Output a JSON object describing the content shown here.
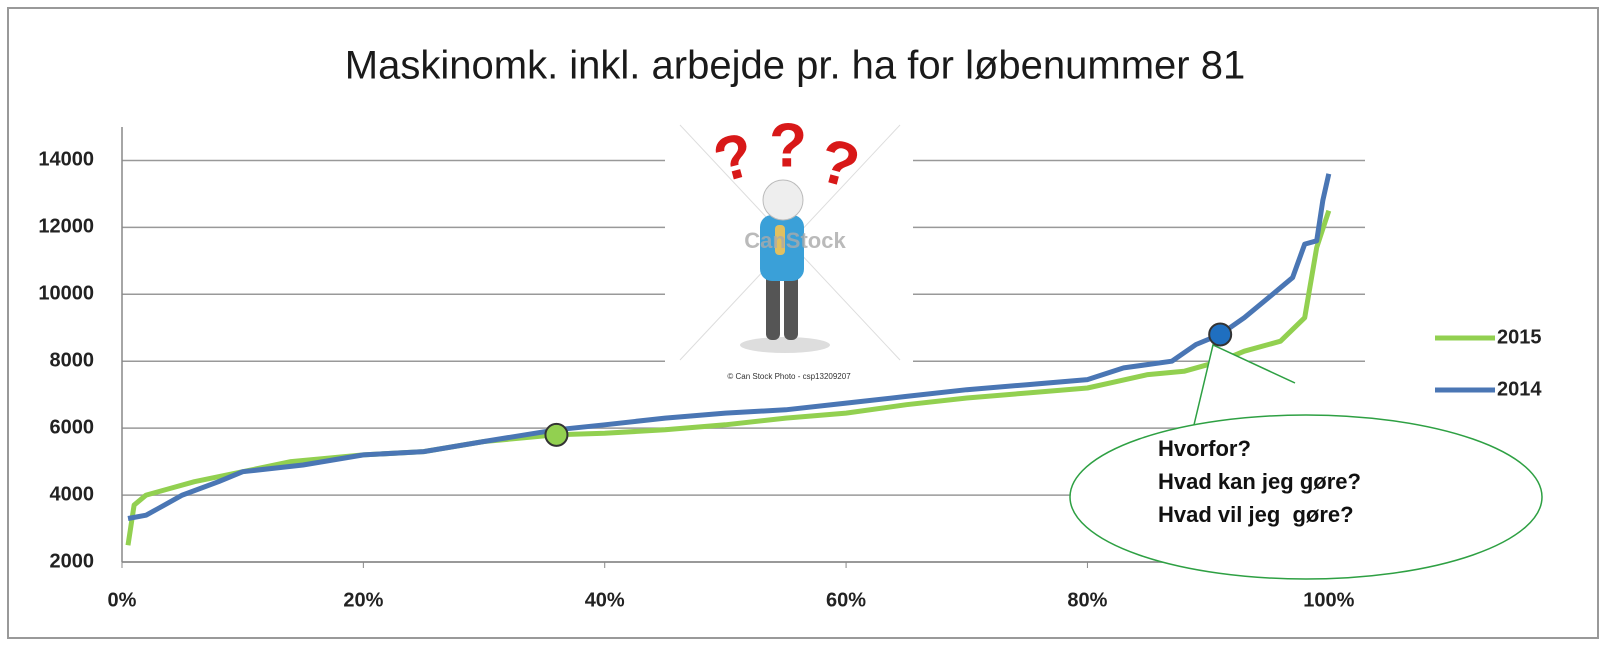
{
  "chart_data": {
    "type": "line",
    "title": "Maskinomk. inkl. arbejde pr. ha for løbenummer 81",
    "xlim": [
      0,
      103
    ],
    "ylim": [
      2000,
      15000
    ],
    "xticks": [
      {
        "value": 0,
        "label": "0%"
      },
      {
        "value": 20,
        "label": "20%"
      },
      {
        "value": 40,
        "label": "40%"
      },
      {
        "value": 60,
        "label": "60%"
      },
      {
        "value": 80,
        "label": "80%"
      },
      {
        "value": 100,
        "label": "100%"
      }
    ],
    "yticks": [
      2000,
      4000,
      6000,
      8000,
      10000,
      12000,
      14000
    ],
    "grid": true,
    "legend": "right",
    "series": [
      {
        "name": "2015",
        "color": "#92d050",
        "x": [
          0.5,
          1,
          2,
          4,
          6,
          10,
          14,
          20,
          25,
          30,
          36,
          40,
          45,
          50,
          55,
          60,
          65,
          70,
          75,
          80,
          85,
          88,
          91,
          93,
          96,
          98,
          99,
          100
        ],
        "values": [
          2500,
          3700,
          4000,
          4200,
          4400,
          4700,
          5000,
          5200,
          5300,
          5600,
          5800,
          5850,
          5950,
          6100,
          6300,
          6450,
          6700,
          6900,
          7050,
          7200,
          7600,
          7700,
          8000,
          8300,
          8600,
          9300,
          11400,
          12500
        ]
      },
      {
        "name": "2014",
        "color": "#4a76b4",
        "x": [
          0.5,
          2,
          3,
          5,
          8,
          10,
          15,
          20,
          25,
          30,
          36,
          40,
          45,
          50,
          55,
          60,
          65,
          70,
          75,
          80,
          83,
          87,
          89,
          91,
          93,
          95,
          97,
          98,
          99,
          99.5,
          100
        ],
        "values": [
          3300,
          3400,
          3600,
          4000,
          4400,
          4700,
          4900,
          5200,
          5300,
          5600,
          5950,
          6100,
          6300,
          6450,
          6550,
          6750,
          6950,
          7150,
          7300,
          7450,
          7800,
          8000,
          8500,
          8800,
          9300,
          9900,
          10500,
          11500,
          11600,
          12800,
          13600
        ]
      }
    ],
    "highlights": [
      {
        "x": 36,
        "y": 5800,
        "color": "#92d050"
      },
      {
        "x": 91,
        "y": 8800,
        "color": "#1f6fc0"
      }
    ],
    "annotations": [
      "Hvorfor?",
      "Hvad kan jeg gøre?",
      "Hvad vil jeg  gøre?"
    ],
    "image_texts": {
      "symbol": "?",
      "watermark": "CanStock",
      "credit": "© Can Stock Photo - csp13209207"
    }
  }
}
